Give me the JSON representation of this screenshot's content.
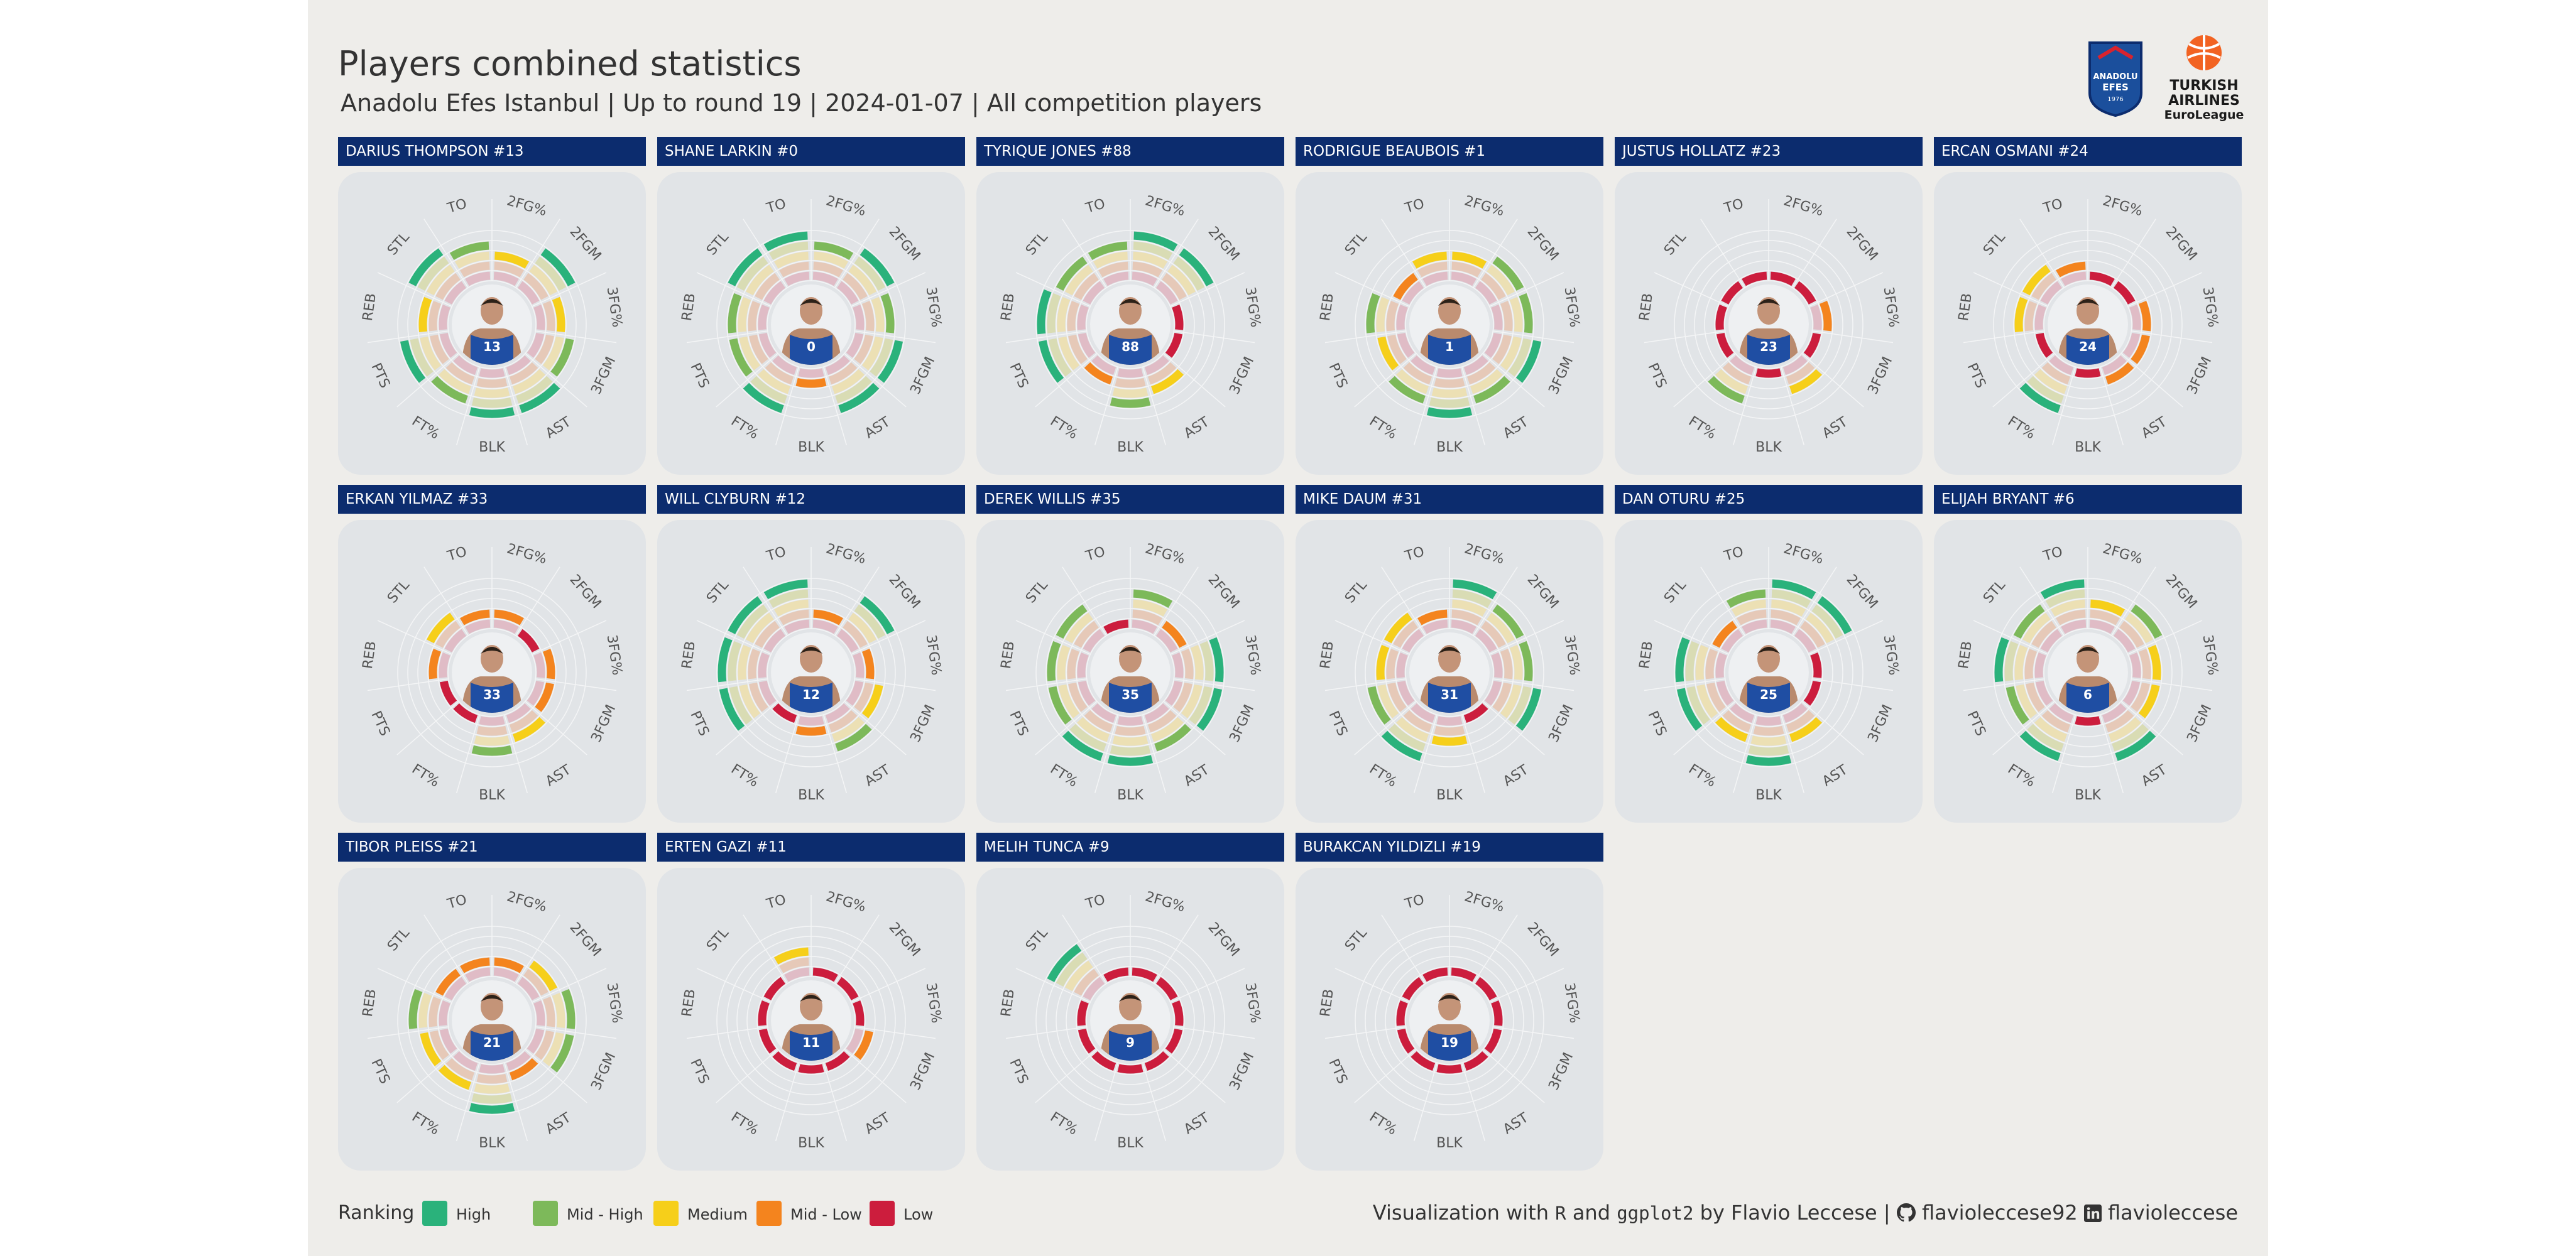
{
  "header": {
    "title": "Players combined statistics",
    "subtitle": "Anadolu Efes Istanbul | Up to round 19 | 2024-01-07 | All competition players"
  },
  "logos": {
    "efes": {
      "line1": "ANADOLU",
      "line2": "EFES",
      "line3": "1976"
    },
    "euroleague": {
      "line1": "TURKISH",
      "line2": "AIRLINES",
      "line3": "EuroLeague"
    }
  },
  "legend": {
    "title": "Ranking",
    "items": [
      {
        "label": "High",
        "color": "#2ab27b"
      },
      {
        "label": "Mid - High",
        "color": "#7db95a"
      },
      {
        "label": "Medium",
        "color": "#f6cf1a"
      },
      {
        "label": "Mid - Low",
        "color": "#f4841e"
      },
      {
        "label": "Low",
        "color": "#cc1d3d"
      }
    ]
  },
  "credit": {
    "visualization": "Visualization with",
    "r": "R",
    "and": "and",
    "ggplot2": "ggplot2",
    "by": "by Flavio Leccese |",
    "github": "flavioleccese92",
    "linkedin": "flavioleccese"
  },
  "chart_data": {
    "type": "radial-bar",
    "stats": [
      "2FG%",
      "2FGM",
      "3FG%",
      "3FGM",
      "AST",
      "BLK",
      "FT%",
      "PTS",
      "REB",
      "STL",
      "TO"
    ],
    "levels": [
      "Low",
      "Mid - Low",
      "Medium",
      "Mid - High",
      "High"
    ],
    "players": [
      {
        "name": "DARIUS THOMPSON #13",
        "jersey": "13",
        "levels": [
          3,
          5,
          3,
          4,
          5,
          5,
          4,
          5,
          3,
          5,
          4
        ]
      },
      {
        "name": "SHANE LARKIN #0",
        "jersey": "0",
        "levels": [
          4,
          5,
          4,
          5,
          5,
          2,
          5,
          4,
          4,
          5,
          5
        ]
      },
      {
        "name": "TYRIQUE JONES #88",
        "jersey": "88",
        "levels": [
          5,
          5,
          1,
          1,
          3,
          4,
          2,
          5,
          5,
          4,
          4
        ]
      },
      {
        "name": "RODRIGUE BEAUBOIS #1",
        "jersey": "1",
        "levels": [
          3,
          4,
          4,
          5,
          4,
          5,
          4,
          3,
          4,
          2,
          3
        ]
      },
      {
        "name": "JUSTUS HOLLATZ #23",
        "jersey": "23",
        "levels": [
          1,
          1,
          2,
          1,
          3,
          1,
          4,
          1,
          1,
          1,
          1
        ]
      },
      {
        "name": "ERCAN OSMANI #24",
        "jersey": "24",
        "levels": [
          1,
          1,
          2,
          2,
          2,
          1,
          5,
          1,
          3,
          3,
          2
        ]
      },
      {
        "name": "ERKAN YILMAZ #33",
        "jersey": "33",
        "levels": [
          2,
          1,
          2,
          2,
          3,
          4,
          1,
          1,
          2,
          3,
          2
        ]
      },
      {
        "name": "WILL CLYBURN #12",
        "jersey": "12",
        "levels": [
          2,
          5,
          2,
          3,
          4,
          2,
          1,
          5,
          5,
          5,
          5
        ]
      },
      {
        "name": "DEREK WILLIS #35",
        "jersey": "35",
        "levels": [
          4,
          2,
          5,
          5,
          4,
          5,
          5,
          4,
          4,
          4,
          1
        ]
      },
      {
        "name": "MIKE DAUM #31",
        "jersey": "31",
        "levels": [
          5,
          4,
          4,
          5,
          1,
          3,
          5,
          4,
          3,
          3,
          2
        ]
      },
      {
        "name": "DAN OTURU #25",
        "jersey": "25",
        "levels": [
          5,
          5,
          1,
          1,
          3,
          5,
          3,
          5,
          5,
          2,
          4
        ]
      },
      {
        "name": "ELIJAH BRYANT #6",
        "jersey": "6",
        "levels": [
          3,
          4,
          3,
          3,
          5,
          1,
          5,
          4,
          5,
          4,
          5
        ]
      },
      {
        "name": "TIBOR PLEISS #21",
        "jersey": "21",
        "levels": [
          2,
          3,
          4,
          4,
          2,
          5,
          3,
          3,
          4,
          2,
          2
        ]
      },
      {
        "name": "ERTEN GAZI #11",
        "jersey": "11",
        "levels": [
          1,
          1,
          1,
          2,
          1,
          1,
          1,
          1,
          1,
          1,
          3
        ]
      },
      {
        "name": "MELIH TUNCA #9",
        "jersey": "9",
        "levels": [
          1,
          1,
          1,
          1,
          1,
          1,
          1,
          1,
          1,
          5,
          1
        ]
      },
      {
        "name": "BURAKCAN YILDIZLI #19",
        "jersey": "19",
        "levels": [
          1,
          1,
          1,
          1,
          1,
          1,
          1,
          1,
          1,
          1,
          1
        ]
      }
    ]
  }
}
